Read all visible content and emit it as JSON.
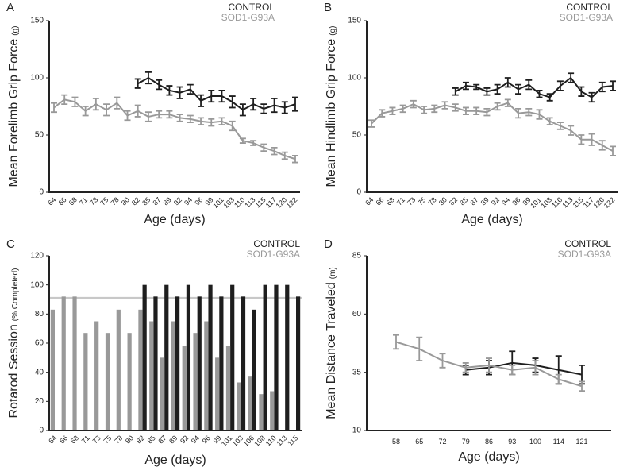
{
  "chart_data": [
    {
      "type": "line",
      "panel_label": "A",
      "xlabel": "Age (days)",
      "ylabel": "Mean Forelimb Grip Force",
      "ylabel_unit": "(g)",
      "categories": [
        "64",
        "66",
        "68",
        "71",
        "73",
        "75",
        "78",
        "80",
        "82",
        "85",
        "87",
        "89",
        "92",
        "94",
        "96",
        "99",
        "101",
        "103",
        "110",
        "113",
        "115",
        "117",
        "120",
        "122"
      ],
      "ylim": [
        0,
        150
      ],
      "yticks": [
        0,
        50,
        100,
        150
      ],
      "series": [
        {
          "name": "CONTROL",
          "color": "#1e1e1e",
          "values": [
            null,
            null,
            null,
            null,
            null,
            null,
            null,
            null,
            95,
            100,
            94,
            89,
            87,
            90,
            80,
            84,
            84,
            79,
            72,
            77,
            73,
            76,
            74,
            77
          ],
          "errors": [
            null,
            null,
            null,
            null,
            null,
            null,
            null,
            null,
            4,
            5,
            4,
            4,
            5,
            4,
            5,
            5,
            5,
            5,
            5,
            5,
            4,
            6,
            5,
            6
          ]
        },
        {
          "name": "SOD1-G93A",
          "color": "#999999",
          "values": [
            74,
            81,
            79,
            71,
            77,
            72,
            78,
            67,
            71,
            66,
            68,
            68,
            65,
            64,
            62,
            61,
            62,
            58,
            45,
            43,
            39,
            36,
            32,
            29
          ],
          "errors": [
            4,
            4,
            4,
            4,
            5,
            5,
            5,
            4,
            5,
            4,
            3,
            3,
            3,
            3,
            3,
            3,
            3,
            4,
            2,
            2,
            3,
            3,
            3,
            3
          ]
        }
      ]
    },
    {
      "type": "line",
      "panel_label": "B",
      "xlabel": "Age (days)",
      "ylabel": "Mean Hindlimb Grip Force",
      "ylabel_unit": "(g)",
      "categories": [
        "64",
        "66",
        "68",
        "71",
        "73",
        "75",
        "78",
        "80",
        "82",
        "85",
        "87",
        "89",
        "92",
        "94",
        "96",
        "99",
        "101",
        "103",
        "110",
        "113",
        "115",
        "117",
        "120",
        "122"
      ],
      "ylim": [
        0,
        150
      ],
      "yticks": [
        0,
        50,
        100,
        150
      ],
      "series": [
        {
          "name": "CONTROL",
          "color": "#1e1e1e",
          "values": [
            null,
            null,
            null,
            null,
            null,
            null,
            null,
            null,
            88,
            93,
            92,
            88,
            90,
            96,
            90,
            94,
            86,
            83,
            93,
            100,
            88,
            83,
            92,
            93
          ],
          "errors": [
            null,
            null,
            null,
            null,
            null,
            null,
            null,
            null,
            3,
            3,
            2,
            3,
            4,
            4,
            4,
            4,
            3,
            3,
            4,
            4,
            4,
            4,
            4,
            4
          ]
        },
        {
          "name": "SOD1-G93A",
          "color": "#999999",
          "values": [
            60,
            69,
            71,
            73,
            77,
            72,
            73,
            76,
            74,
            71,
            71,
            70,
            75,
            78,
            69,
            70,
            68,
            62,
            58,
            54,
            46,
            46,
            41,
            36
          ],
          "errors": [
            3,
            3,
            3,
            3,
            3,
            3,
            3,
            3,
            3,
            3,
            3,
            3,
            3,
            3,
            4,
            3,
            4,
            3,
            3,
            4,
            4,
            5,
            4,
            4
          ]
        }
      ]
    },
    {
      "type": "bar",
      "panel_label": "C",
      "xlabel": "Age (days)",
      "ylabel": "Rotarod Session",
      "ylabel_unit": "(% Completed)",
      "categories": [
        "64",
        "66",
        "68",
        "71",
        "73",
        "75",
        "78",
        "80",
        "82",
        "85",
        "87",
        "89",
        "92",
        "94",
        "96",
        "99",
        "101",
        "103",
        "106",
        "108",
        "110",
        "113",
        "115"
      ],
      "ylim": [
        0,
        120
      ],
      "yticks": [
        0,
        20,
        40,
        60,
        80,
        100,
        120
      ],
      "hline": 91,
      "series": [
        {
          "name": "CONTROL",
          "color": "#1e1e1e",
          "values": [
            null,
            null,
            null,
            null,
            null,
            null,
            null,
            null,
            100,
            92,
            100,
            92,
            100,
            92,
            100,
            92,
            100,
            92,
            83,
            100,
            100,
            100,
            92
          ]
        },
        {
          "name": "SOD1-G93A",
          "color": "#999999",
          "values": [
            83,
            92,
            92,
            67,
            75,
            67,
            83,
            67,
            83,
            75,
            50,
            75,
            58,
            67,
            75,
            50,
            58,
            33,
            37,
            25,
            27,
            null,
            null
          ]
        }
      ]
    },
    {
      "type": "line",
      "panel_label": "D",
      "xlabel": "Age (days)",
      "ylabel": "Mean Distance Traveled",
      "ylabel_unit": "(m)",
      "categories": [
        "58",
        "65",
        "72",
        "79",
        "86",
        "93",
        "100",
        "114",
        "121"
      ],
      "ylim": [
        10,
        85
      ],
      "yticks": [
        10,
        35,
        60,
        85
      ],
      "series": [
        {
          "name": "CONTROL",
          "color": "#1e1e1e",
          "values": [
            null,
            null,
            null,
            36,
            37,
            39,
            38,
            36,
            34
          ],
          "errors": [
            null,
            null,
            null,
            2,
            3,
            5,
            3,
            6,
            4
          ]
        },
        {
          "name": "SOD1-G93A",
          "color": "#999999",
          "values": [
            48,
            45,
            40,
            37,
            38,
            36,
            37,
            32,
            29
          ],
          "errors": [
            3,
            5,
            3,
            2,
            3,
            2,
            3,
            2,
            2
          ]
        }
      ]
    }
  ]
}
